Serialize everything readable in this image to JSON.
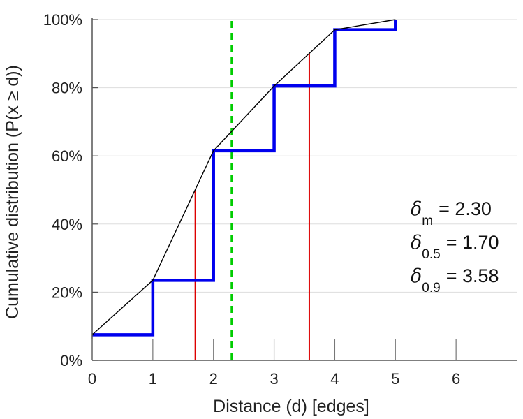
{
  "chart_data": {
    "type": "line",
    "xlabel": "Distance (d) [edges]",
    "ylabel": "Cumulative distribution (P(x ≥ d))",
    "xlim": [
      0,
      7
    ],
    "ylim": [
      0,
      1
    ],
    "x_ticks": [
      0,
      1,
      2,
      3,
      4,
      5,
      6
    ],
    "y_ticks": [
      0,
      0.2,
      0.4,
      0.6,
      0.8,
      1.0
    ],
    "y_tick_labels": [
      "0%",
      "20%",
      "40%",
      "60%",
      "80%",
      "100%"
    ],
    "grid": "horizontal",
    "series": [
      {
        "style": "step",
        "color": "#0000ee",
        "x": [
          0,
          1,
          2,
          3,
          4,
          5
        ],
        "y": [
          0.075,
          0.235,
          0.615,
          0.805,
          0.97,
          1.0
        ]
      },
      {
        "style": "line",
        "color": "#000000",
        "x": [
          0,
          1,
          2,
          3,
          4,
          5
        ],
        "y": [
          0.075,
          0.235,
          0.615,
          0.805,
          0.97,
          1.0
        ]
      }
    ],
    "vlines": [
      {
        "x": 1.7,
        "y_top": 0.5,
        "color": "#dd0000",
        "style": "solid"
      },
      {
        "x": 3.58,
        "y_top": 0.9,
        "color": "#dd0000",
        "style": "solid"
      },
      {
        "x": 2.3,
        "y_top": 1.0,
        "color": "#00cc00",
        "style": "dashed"
      }
    ],
    "annotations": [
      {
        "symbol": "δ",
        "subscript": "m",
        "value": "= 2.30"
      },
      {
        "symbol": "δ",
        "subscript": "0.5",
        "value": "= 1.70"
      },
      {
        "symbol": "δ",
        "subscript": "0.9",
        "value": "= 3.58"
      }
    ]
  }
}
